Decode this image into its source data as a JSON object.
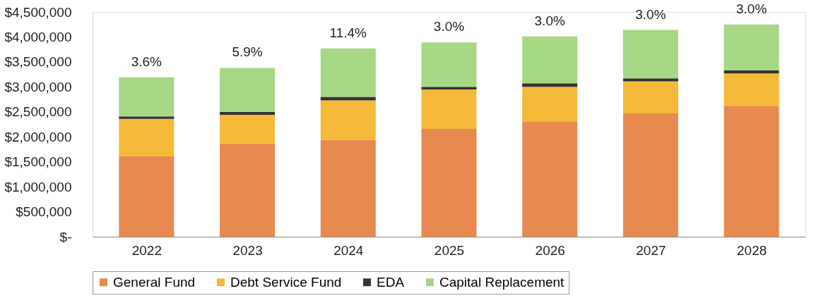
{
  "chart_data": {
    "type": "bar",
    "stacked": true,
    "categories": [
      "2022",
      "2023",
      "2024",
      "2025",
      "2026",
      "2027",
      "2028"
    ],
    "series": [
      {
        "name": "General Fund",
        "color": "#e8894f",
        "values": [
          1610000,
          1870000,
          1940000,
          2160000,
          2310000,
          2470000,
          2620000
        ]
      },
      {
        "name": "Debt Service Fund",
        "color": "#f5b93a",
        "values": [
          750000,
          570000,
          790000,
          790000,
          690000,
          640000,
          650000
        ]
      },
      {
        "name": "EDA",
        "color": "#333333",
        "values": [
          50000,
          60000,
          70000,
          50000,
          70000,
          60000,
          60000
        ]
      },
      {
        "name": "Capital Replacement",
        "color": "#a6d785",
        "values": [
          780000,
          880000,
          970000,
          890000,
          940000,
          970000,
          920000
        ]
      }
    ],
    "ylim": [
      0,
      4500000
    ],
    "yticks": [
      {
        "value": 0,
        "label": "$-"
      },
      {
        "value": 500000,
        "label": "$500,000"
      },
      {
        "value": 1000000,
        "label": "$1,000,000"
      },
      {
        "value": 1500000,
        "label": "$1,500,000"
      },
      {
        "value": 2000000,
        "label": "$2,000,000"
      },
      {
        "value": 2500000,
        "label": "$2,500,000"
      },
      {
        "value": 3000000,
        "label": "$3,000,000"
      },
      {
        "value": 3500000,
        "label": "$3,500,000"
      },
      {
        "value": 4000000,
        "label": "$4,000,000"
      },
      {
        "value": 4500000,
        "label": "$4,500,000"
      }
    ],
    "annotations": [
      {
        "text": "3.6%",
        "x": "2022",
        "y": 3190000
      },
      {
        "text": "5.9%",
        "x": "2023",
        "y": 3380000
      },
      {
        "text": "11.4%",
        "x": "2024",
        "y": 3770000
      },
      {
        "text": "3.0%",
        "x": "2025",
        "y": 3890000
      },
      {
        "text": "3.0%",
        "x": "2026",
        "y": 4010000
      },
      {
        "text": "3.0%",
        "x": "2027",
        "y": 4140000
      },
      {
        "text": "3.0%",
        "x": "2028",
        "y": 4250000
      }
    ],
    "grid": false,
    "legend": "bottom"
  }
}
